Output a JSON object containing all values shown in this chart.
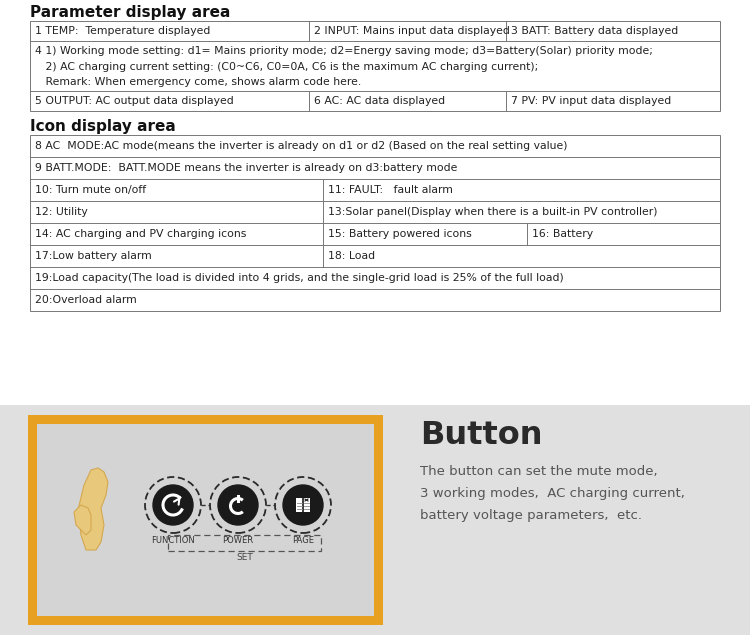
{
  "title1": "Parameter display area",
  "title2": "Icon display area",
  "param_rows": [
    [
      "1 TEMP:  Temperature displayed",
      "2 INPUT: Mains input data displayed",
      "3 BATT: Battery data displayed"
    ],
    [
      "4 1) Working mode setting: d1= Mains priority mode; d2=Energy saving mode; d3=Battery(Solar) priority mode;\n   2) AC charging current setting: (C0~C6, C0=0A, C6 is the maximum AC charging current);\n   Remark: When emergency come, shows alarm code here.",
      "",
      ""
    ],
    [
      "5 OUTPUT: AC output data displayed",
      "6 AC: AC data displayed",
      "7 PV: PV input data displayed"
    ]
  ],
  "icon_rows": [
    {
      "cells": [
        "8 AC  MODE:AC mode(means the inverter is already on d1 or d2 (Based on the real setting value)"
      ],
      "splits": []
    },
    {
      "cells": [
        "9 BATT.MODE:  BATT.MODE means the inverter is already on d3:battery mode"
      ],
      "splits": []
    },
    {
      "cells": [
        "10: Turn mute on/off",
        "11: FAULT:   fault alarm"
      ],
      "splits": [
        0.425
      ]
    },
    {
      "cells": [
        "12: Utility",
        "13:Solar panel(Display when there is a built-in PV controller)"
      ],
      "splits": [
        0.425
      ]
    },
    {
      "cells": [
        "14: AC charging and PV charging icons",
        "15: Battery powered icons",
        "16: Battery"
      ],
      "splits": [
        0.425,
        0.72
      ]
    },
    {
      "cells": [
        "17:Low battery alarm",
        "18: Load"
      ],
      "splits": [
        0.425
      ]
    },
    {
      "cells": [
        "19:Load capacity(The load is divided into 4 grids, and the single-grid load is 25% of the full load)"
      ],
      "splits": []
    },
    {
      "cells": [
        "20:Overload alarm"
      ],
      "splits": []
    }
  ],
  "button_title": "Button",
  "button_text": "The button can set the mute mode,\n3 working modes,  AC charging current,\nbattery voltage parameters,  etc.",
  "button_labels": [
    "FUNCTION",
    "POWER",
    "PAGE"
  ],
  "set_label": "SET",
  "orange_color": "#E8A020",
  "gray_bg": "#e0e0e0",
  "inner_gray": "#d4d4d4",
  "border_color": "#777777",
  "text_color": "#222222",
  "title_color": "#111111",
  "hand_color": "#e8c87a",
  "hand_edge": "#d4a850"
}
